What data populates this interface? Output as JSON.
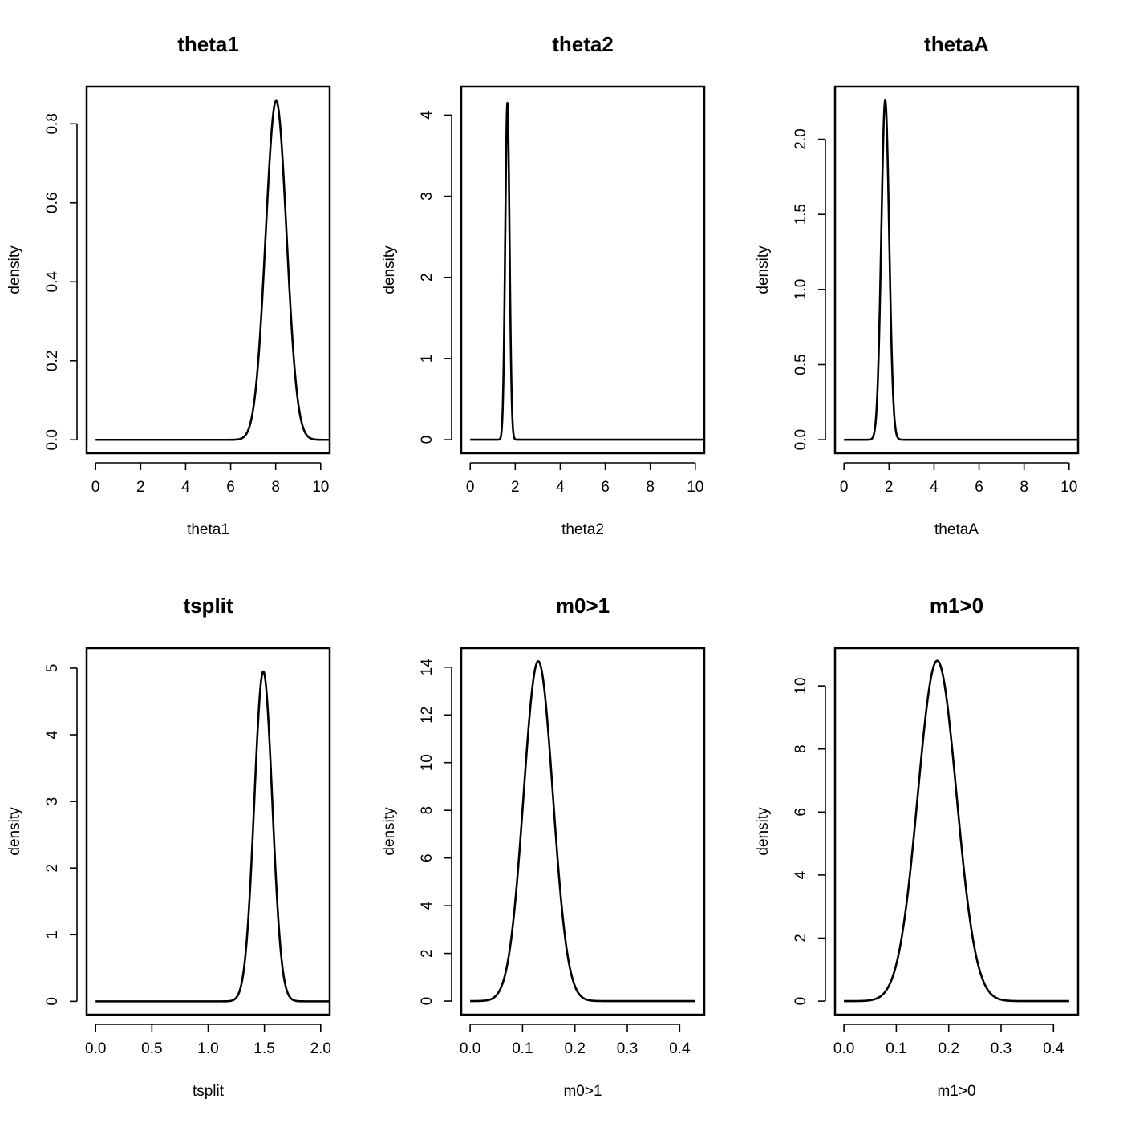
{
  "chart_data": [
    {
      "type": "line",
      "title": "theta1",
      "xlabel": "theta1",
      "ylabel": "density",
      "xlim": [
        -0.4,
        10.4
      ],
      "ylim": [
        -0.034,
        0.894
      ],
      "xticks": [
        0,
        2,
        4,
        6,
        8,
        10
      ],
      "xtick_labels": [
        "0",
        "2",
        "4",
        "6",
        "8",
        "10"
      ],
      "yticks": [
        0.0,
        0.2,
        0.4,
        0.6,
        0.8
      ],
      "ytick_labels": [
        "0.0",
        "0.2",
        "0.4",
        "0.6",
        "0.8"
      ],
      "series": [
        {
          "name": "theta1",
          "dist": "normal",
          "mean": 8.02,
          "sd": 0.465,
          "peak": 0.858,
          "x_from": 0,
          "x_to": 10.4
        }
      ]
    },
    {
      "type": "line",
      "title": "theta2",
      "xlabel": "theta2",
      "ylabel": "density",
      "xlim": [
        -0.4,
        10.4
      ],
      "ylim": [
        -0.167,
        4.35
      ],
      "xticks": [
        0,
        2,
        4,
        6,
        8,
        10
      ],
      "xtick_labels": [
        "0",
        "2",
        "4",
        "6",
        "8",
        "10"
      ],
      "yticks": [
        0,
        1,
        2,
        3,
        4
      ],
      "ytick_labels": [
        "0",
        "1",
        "2",
        "3",
        "4"
      ],
      "series": [
        {
          "name": "theta2",
          "dist": "normal",
          "mean": 1.65,
          "sd": 0.095,
          "peak": 4.15,
          "x_from": 0,
          "x_to": 10.4
        }
      ]
    },
    {
      "type": "line",
      "title": "thetaA",
      "xlabel": "thetaA",
      "ylabel": "density",
      "xlim": [
        -0.4,
        10.4
      ],
      "ylim": [
        -0.09,
        2.35
      ],
      "xticks": [
        0,
        2,
        4,
        6,
        8,
        10
      ],
      "xtick_labels": [
        "0",
        "2",
        "4",
        "6",
        "8",
        "10"
      ],
      "yticks": [
        0.0,
        0.5,
        1.0,
        1.5,
        2.0
      ],
      "ytick_labels": [
        "0.0",
        "0.5",
        "1.0",
        "1.5",
        "2.0"
      ],
      "series": [
        {
          "name": "thetaA",
          "dist": "normal",
          "mean": 1.83,
          "sd": 0.175,
          "peak": 2.26,
          "x_from": 0,
          "x_to": 10.4
        }
      ]
    },
    {
      "type": "line",
      "title": "tsplit",
      "xlabel": "tsplit",
      "ylabel": "density",
      "xlim": [
        -0.08,
        2.08
      ],
      "ylim": [
        -0.2,
        5.3
      ],
      "xticks": [
        0.0,
        0.5,
        1.0,
        1.5,
        2.0
      ],
      "xtick_labels": [
        "0.0",
        "0.5",
        "1.0",
        "1.5",
        "2.0"
      ],
      "yticks": [
        0,
        1,
        2,
        3,
        4,
        5
      ],
      "ytick_labels": [
        "0",
        "1",
        "2",
        "3",
        "4",
        "5"
      ],
      "series": [
        {
          "name": "tsplit",
          "dist": "normal",
          "mean": 1.49,
          "sd": 0.08,
          "peak": 4.95,
          "x_from": 0,
          "x_to": 2.08
        }
      ]
    },
    {
      "type": "line",
      "title": "m0>1",
      "xlabel": "m0>1",
      "ylabel": "density",
      "xlim": [
        -0.017,
        0.447
      ],
      "ylim": [
        -0.57,
        14.8
      ],
      "xticks": [
        0.0,
        0.1,
        0.2,
        0.3,
        0.4
      ],
      "xtick_labels": [
        "0.0",
        "0.1",
        "0.2",
        "0.3",
        "0.4"
      ],
      "yticks": [
        0,
        2,
        4,
        6,
        8,
        10,
        12,
        14
      ],
      "ytick_labels": [
        "0",
        "2",
        "4",
        "6",
        "8",
        "10",
        "12",
        "14"
      ],
      "series": [
        {
          "name": "m0>1",
          "dist": "normal",
          "mean": 0.13,
          "sd": 0.028,
          "peak": 14.25,
          "x_from": 0,
          "x_to": 0.43
        }
      ]
    },
    {
      "type": "line",
      "title": "m1>0",
      "xlabel": "m1>0",
      "ylabel": "density",
      "xlim": [
        -0.017,
        0.447
      ],
      "ylim": [
        -0.43,
        11.2
      ],
      "xticks": [
        0.0,
        0.1,
        0.2,
        0.3,
        0.4
      ],
      "xtick_labels": [
        "0.0",
        "0.1",
        "0.2",
        "0.3",
        "0.4"
      ],
      "yticks": [
        0,
        2,
        4,
        6,
        8,
        10
      ],
      "ytick_labels": [
        "0",
        "2",
        "4",
        "6",
        "8",
        "10"
      ],
      "series": [
        {
          "name": "m1>0",
          "dist": "normal",
          "mean": 0.178,
          "sd": 0.037,
          "peak": 10.8,
          "x_from": 0,
          "x_to": 0.43
        }
      ]
    }
  ]
}
